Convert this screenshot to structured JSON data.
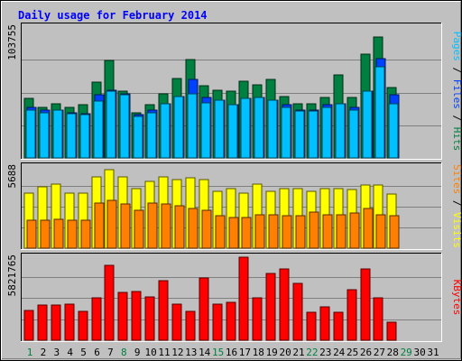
{
  "chart_data": {
    "type": "bar",
    "title": "Daily usage for February 2014",
    "days": [
      "1",
      "2",
      "3",
      "4",
      "5",
      "6",
      "7",
      "8",
      "9",
      "10",
      "11",
      "12",
      "13",
      "14",
      "15",
      "16",
      "17",
      "18",
      "19",
      "20",
      "21",
      "22",
      "23",
      "24",
      "25",
      "26",
      "27",
      "28",
      "29",
      "30",
      "31"
    ],
    "weekend_days": [
      1,
      8,
      15,
      22,
      29
    ],
    "panels": [
      {
        "name": "hits",
        "max_label": "103755",
        "ymax": 103755,
        "grid": true,
        "right_labels": [
          {
            "text": "Pages",
            "color": "#00c0ff"
          },
          {
            "text": " / ",
            "color": "#000000"
          },
          {
            "text": "Files",
            "color": "#0040ff"
          },
          {
            "text": " / ",
            "color": "#000000"
          },
          {
            "text": "Hits",
            "color": "#008040"
          }
        ],
        "series": [
          {
            "name": "Hits",
            "color": "#008040",
            "values": [
              47000,
              40000,
              43000,
              40000,
              42000,
              60000,
              77000,
              53000,
              36000,
              42000,
              51000,
              63000,
              78000,
              57000,
              54000,
              53000,
              61000,
              58000,
              62000,
              49000,
              43000,
              43000,
              48000,
              66000,
              48000,
              82000,
              96000,
              56000
            ]
          },
          {
            "name": "Files",
            "color": "#0040ff",
            "values": [
              40000,
              38000,
              38000,
              36000,
              35000,
              50000,
              54000,
              51000,
              34000,
              38000,
              43000,
              49000,
              62000,
              48000,
              46000,
              42000,
              47000,
              48000,
              46000,
              42000,
              38000,
              38000,
              42000,
              43000,
              40000,
              53000,
              79000,
              50000
            ]
          },
          {
            "name": "Pages",
            "color": "#00c0ff",
            "values": [
              38000,
              36000,
              38000,
              35000,
              34000,
              45000,
              53000,
              50000,
              33000,
              36000,
              43000,
              49000,
              51000,
              44000,
              46000,
              42000,
              47000,
              48000,
              46000,
              40000,
              37000,
              37000,
              40000,
              43000,
              38000,
              53000,
              72000,
              43000
            ]
          }
        ]
      },
      {
        "name": "visits",
        "max_label": "5688",
        "ymax": 5688,
        "grid": true,
        "right_labels": [
          {
            "text": "Sites",
            "color": "#ff8000"
          },
          {
            "text": " / ",
            "color": "#000000"
          },
          {
            "text": "Visits",
            "color": "#ffff00"
          }
        ],
        "series": [
          {
            "name": "Visits",
            "color": "#ffff00",
            "values": [
              3800,
              4200,
              4400,
              3800,
              3800,
              4900,
              5400,
              4900,
              4100,
              4600,
              4900,
              4700,
              4800,
              4700,
              3900,
              4100,
              3800,
              4400,
              3900,
              4100,
              4100,
              3900,
              4100,
              4100,
              4000,
              4300,
              4300,
              3700
            ]
          },
          {
            "name": "Sites",
            "color": "#ff8000",
            "values": [
              1900,
              1900,
              2000,
              1900,
              1900,
              3100,
              3300,
              3000,
              2600,
              3100,
              3000,
              2900,
              2700,
              2600,
              2200,
              2100,
              2100,
              2300,
              2300,
              2200,
              2200,
              2500,
              2300,
              2300,
              2400,
              2700,
              2300,
              2200
            ]
          }
        ]
      },
      {
        "name": "kbytes",
        "max_label": "5821765",
        "ymax": 5821765,
        "grid": true,
        "right_labels": [
          {
            "text": "KBytes",
            "color": "#ff0000"
          }
        ],
        "series": [
          {
            "name": "KBytes",
            "color": "#ff0000",
            "values": [
              2050000,
              2430000,
              2430000,
              2480000,
              1980000,
              2880000,
              5120000,
              3290000,
              3350000,
              3000000,
              4060000,
              2480000,
              1980000,
              4290000,
              2480000,
              2600000,
              5690000,
              2880000,
              4580000,
              4920000,
              3920000,
              1920000,
              2280000,
              1920000,
              3460000,
              4920000,
              2880000,
              1250000
            ]
          }
        ]
      }
    ]
  }
}
